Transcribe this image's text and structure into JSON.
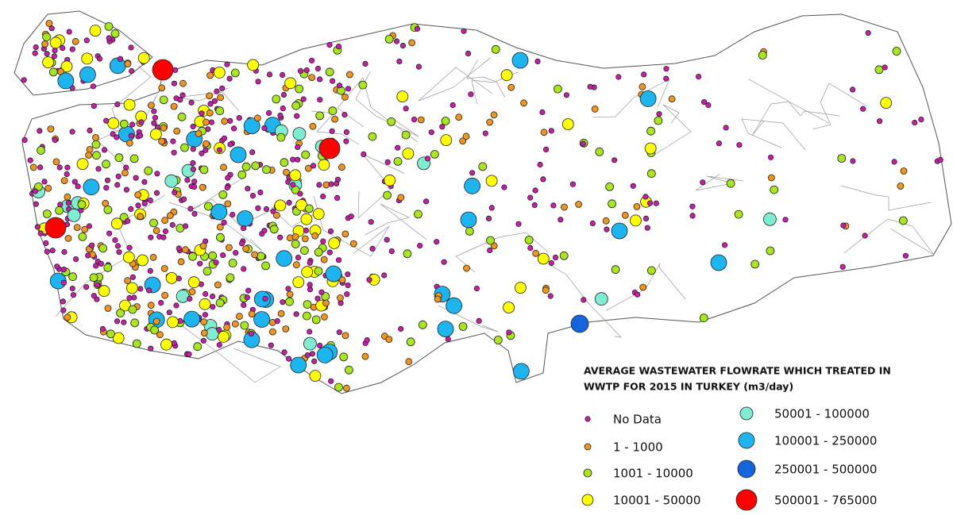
{
  "legend": {
    "title_lines": [
      "AVERAGE WASTEWATER FLOWRATE WHICH TREATED IN",
      "WWTP FOR 2015 IN TURKEY (m3/day)"
    ],
    "items": [
      {
        "label": "No Data",
        "color": "#c81ea8"
      },
      {
        "label": "1 - 1000",
        "color": "#f0961e"
      },
      {
        "label": "1001 - 10000",
        "color": "#a8e620"
      },
      {
        "label": "10001 - 50000",
        "color": "#ffff00"
      },
      {
        "label": "50001 - 100000",
        "color": "#80ecd2"
      },
      {
        "label": "100001 - 250000",
        "color": "#1eb4f0"
      },
      {
        "label": "250001 - 500000",
        "color": "#1464dc"
      },
      {
        "label": "500001 - 765000",
        "color": "#ff0000"
      }
    ]
  }
}
